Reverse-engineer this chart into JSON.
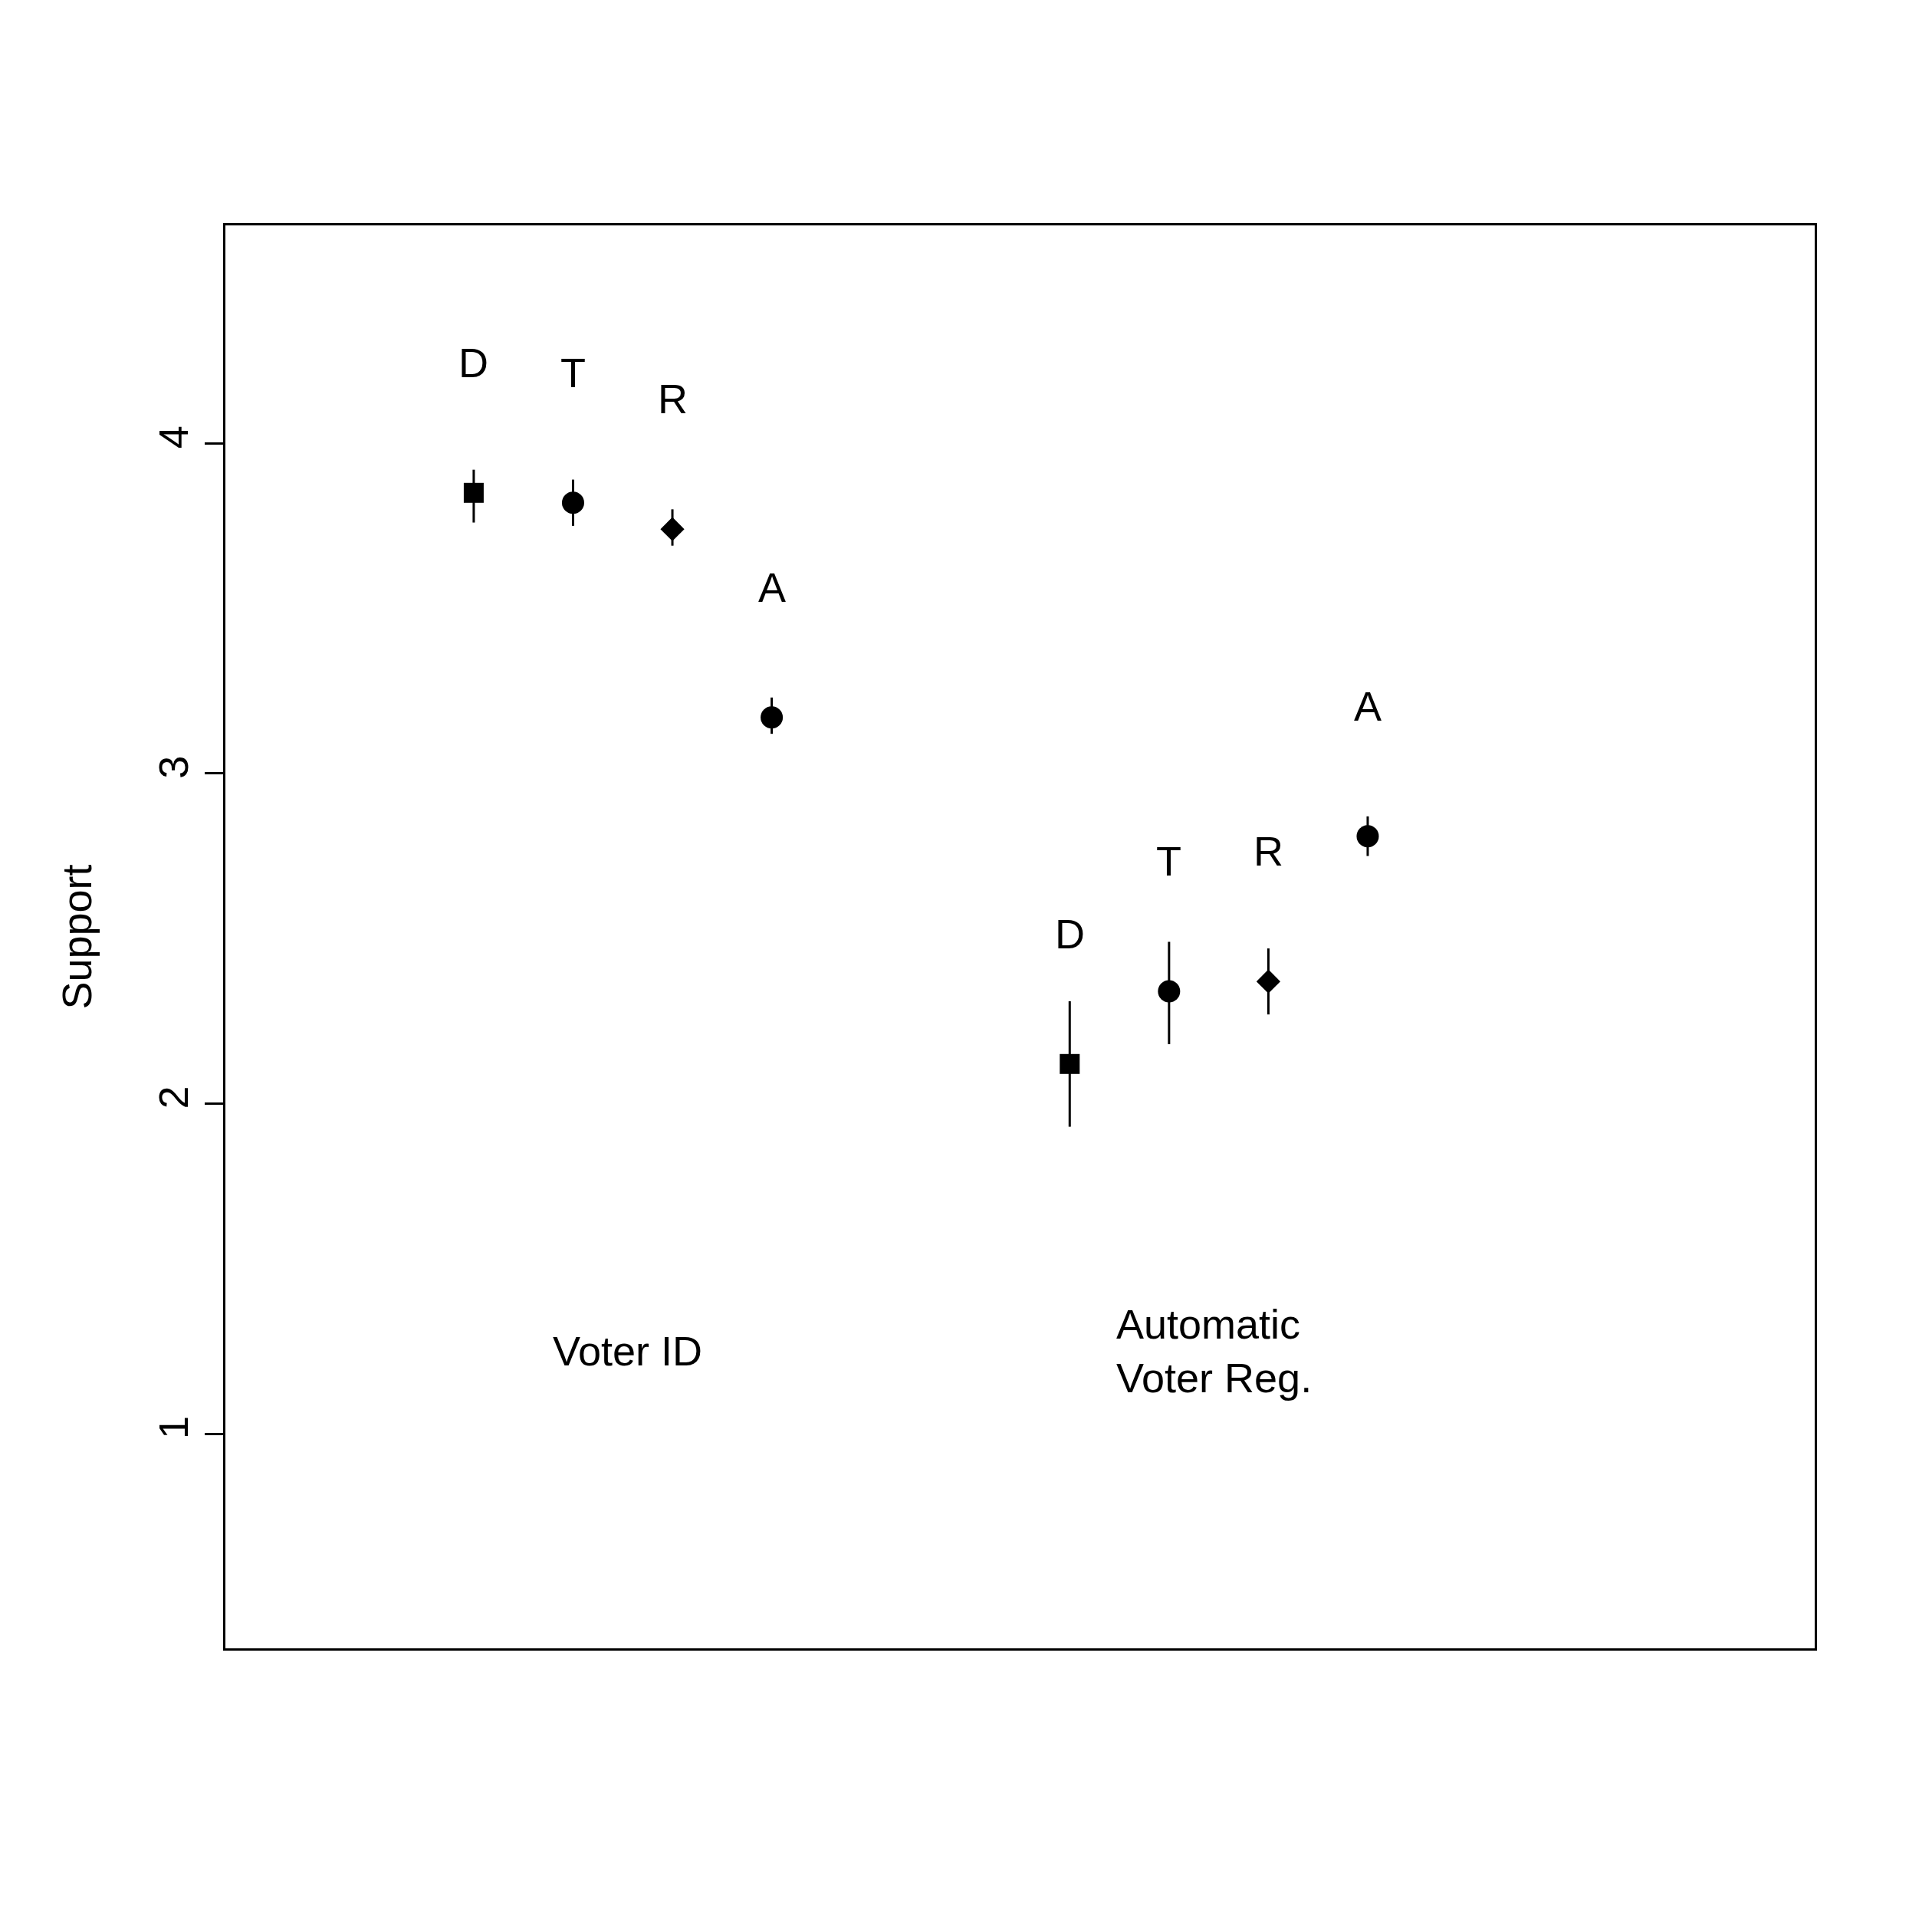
{
  "chart_data": {
    "type": "scatter",
    "ylabel": "Support",
    "categories": [
      null,
      null,
      null,
      null,
      null,
      null,
      null,
      null,
      null,
      null,
      null,
      null,
      null,
      null,
      null,
      null
    ],
    "series": [
      {
        "color": "#000000",
        "marker": "square",
        "values": [
          null,
          null,
          3.85,
          null,
          null,
          null,
          null,
          null,
          2.12,
          null,
          null,
          null,
          null,
          null,
          null,
          null
        ],
        "errors": [
          null,
          null,
          [
            3.76,
            3.92
          ],
          null,
          null,
          null,
          null,
          null,
          [
            1.93,
            2.31
          ],
          null,
          null,
          null,
          null,
          null,
          null,
          null
        ],
        "value_labels": [
          null,
          null,
          "D",
          null,
          null,
          null,
          null,
          null,
          "D",
          null,
          null,
          null,
          null,
          null,
          null,
          null
        ]
      },
      {
        "color": "#000000",
        "marker": "circle",
        "values": [
          null,
          null,
          null,
          3.82,
          null,
          3.17,
          null,
          null,
          null,
          2.34,
          null,
          2.81,
          null,
          null,
          null,
          null
        ],
        "errors": [
          null,
          null,
          null,
          [
            3.75,
            3.89
          ],
          null,
          [
            3.12,
            3.23
          ],
          null,
          null,
          null,
          [
            2.18,
            2.49
          ],
          null,
          [
            2.75,
            2.87
          ],
          null,
          null,
          null,
          null
        ],
        "value_labels": [
          null,
          null,
          null,
          "T",
          null,
          "A",
          null,
          null,
          null,
          "T",
          null,
          "A",
          null,
          null,
          null,
          null
        ]
      },
      {
        "color": "#000000",
        "marker": "diamond",
        "values": [
          null,
          null,
          null,
          null,
          3.74,
          null,
          null,
          null,
          null,
          null,
          2.37,
          null,
          null,
          null,
          null,
          null
        ],
        "errors": [
          null,
          null,
          null,
          null,
          [
            3.69,
            3.8
          ],
          null,
          null,
          null,
          null,
          null,
          [
            2.27,
            2.47
          ],
          null,
          null,
          null,
          null,
          null
        ],
        "value_labels": [
          null,
          null,
          null,
          null,
          "R",
          null,
          null,
          null,
          null,
          null,
          "R",
          null,
          null,
          null,
          null,
          null
        ]
      }
    ],
    "annotations": [
      "Voter ID",
      "Automatic\nVoter Reg."
    ],
    "ylim": [
      0.35,
      4.66
    ],
    "yticks": [
      1,
      2,
      3,
      4
    ],
    "grid": false,
    "tick_labels": "y"
  }
}
